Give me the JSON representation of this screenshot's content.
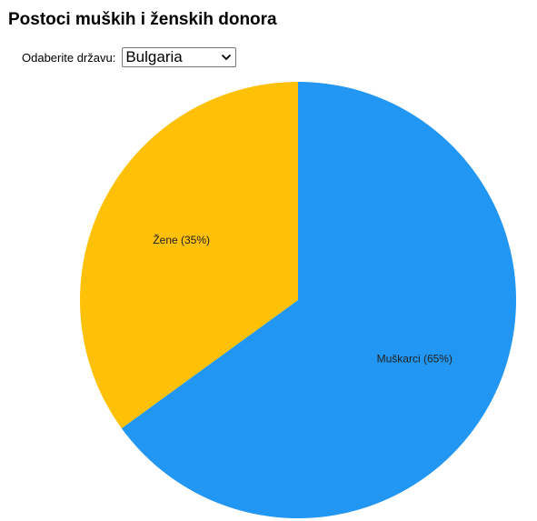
{
  "page": {
    "title": "Postoci muških i ženskih donora"
  },
  "country_select": {
    "label": "Odaberite državu:",
    "value": "Bulgaria"
  },
  "chart_data": {
    "type": "pie",
    "title": "",
    "start": "top",
    "direction": "clockwise",
    "slices": [
      {
        "label": "Muškarci (65%)",
        "value": 65,
        "color": "#2196F3"
      },
      {
        "label": "Žene (35%)",
        "value": 35,
        "color": "#FFC107"
      }
    ]
  }
}
